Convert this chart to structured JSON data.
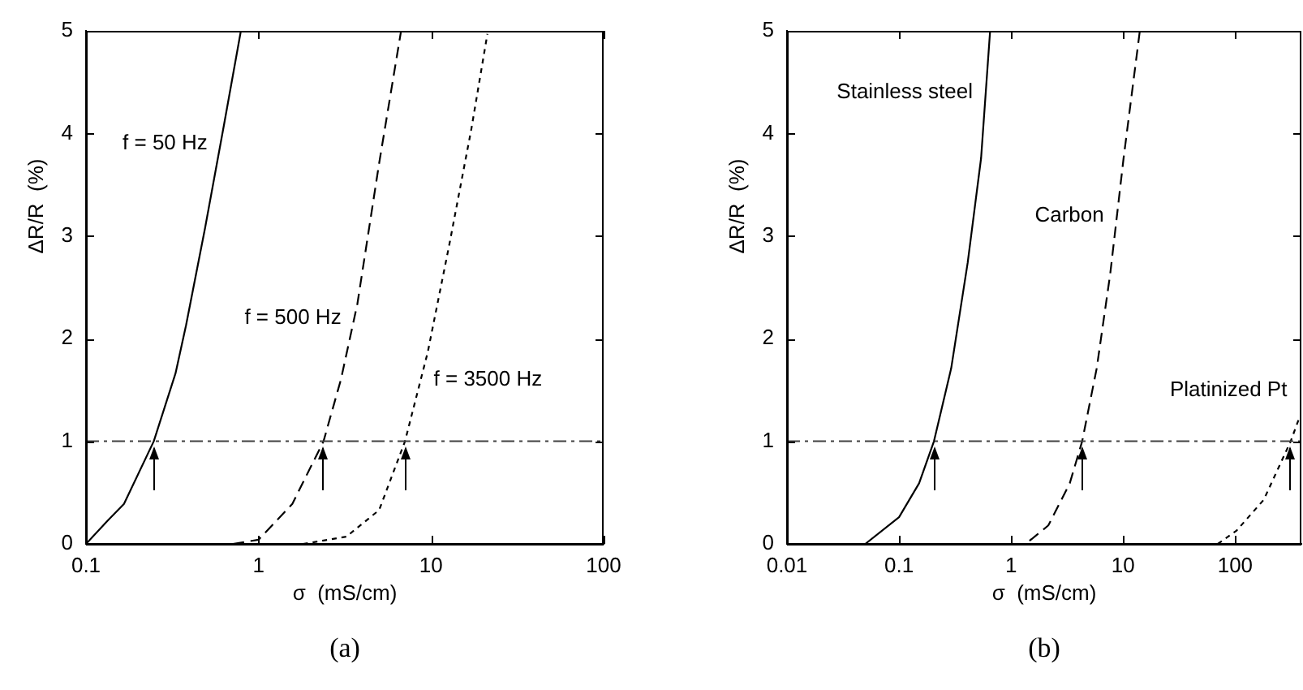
{
  "chart_data": [
    {
      "type": "line",
      "title": "(a)",
      "xlabel": "σ  (mS/cm)",
      "ylabel": "ΔR/R  (%)",
      "log": "x",
      "legend": false,
      "marker": "none",
      "xlim": [
        0.1,
        100
      ],
      "xticks": [
        0.1,
        1,
        10,
        100
      ],
      "ylim": [
        0,
        5
      ],
      "yticks": [
        0,
        1,
        2,
        3,
        4,
        5
      ],
      "ref_lines": [
        {
          "axis": "y",
          "value": 1,
          "color": "#404040"
        }
      ],
      "series": [
        {
          "name": "f = 50 Hz",
          "color": "#000000",
          "line_style": "solid",
          "x": [
            0.1,
            0.134,
            0.166,
            0.247,
            0.33,
            0.38,
            0.49,
            0.63,
            0.79
          ],
          "values": [
            0,
            0.23,
            0.39,
            1.0,
            1.66,
            2.13,
            3.08,
            4.08,
            5
          ]
        },
        {
          "name": "f = 500 Hz",
          "color": "#000000",
          "line_style": "dashed",
          "x": [
            0.71,
            1,
            1.57,
            2.38,
            3.0,
            3.74,
            5.0,
            6.7
          ],
          "values": [
            0,
            0.04,
            0.39,
            1.0,
            1.6,
            2.34,
            3.71,
            5
          ]
        },
        {
          "name": "f = 3500 Hz",
          "color": "#000000",
          "line_style": "dotted",
          "x": [
            1.81,
            3.23,
            5.0,
            7.06,
            9.57,
            12.8,
            17.1,
            21.2
          ],
          "values": [
            0,
            0.07,
            0.33,
            1.0,
            1.87,
            2.93,
            4.04,
            4.97
          ]
        }
      ]
    },
    {
      "type": "line",
      "title": "(b)",
      "xlabel": "σ  (mS/cm)",
      "ylabel": "ΔR/R  (%)",
      "log": "x",
      "legend": false,
      "marker": "none",
      "xlim": [
        0.01,
        390
      ],
      "xticks": [
        0.01,
        0.1,
        1,
        10,
        100
      ],
      "ylim": [
        0,
        5
      ],
      "yticks": [
        0,
        1,
        2,
        3,
        4,
        5
      ],
      "ref_lines": [
        {
          "axis": "y",
          "value": 1,
          "color": "#404040"
        }
      ],
      "series": [
        {
          "name": "Stainless steel",
          "color": "#000000",
          "line_style": "solid",
          "x": [
            0.05,
            0.1,
            0.151,
            0.205,
            0.292,
            0.41,
            0.54,
            0.65
          ],
          "values": [
            0,
            0.26,
            0.59,
            1.0,
            1.71,
            2.74,
            3.76,
            5
          ]
        },
        {
          "name": "Carbon",
          "color": "#000000",
          "line_style": "dashed",
          "x": [
            1.46,
            2.15,
            3.34,
            4.31,
            5.81,
            7.67,
            10.1,
            14.1
          ],
          "values": [
            0.03,
            0.18,
            0.59,
            1.0,
            1.71,
            2.63,
            3.76,
            5
          ]
        },
        {
          "name": "Platinized Pt",
          "color": "#000000",
          "line_style": "dotted",
          "x": [
            70,
            103,
            180,
            313,
            380
          ],
          "values": [
            0,
            0.13,
            0.43,
            1.0,
            1.25
          ]
        }
      ]
    }
  ]
}
